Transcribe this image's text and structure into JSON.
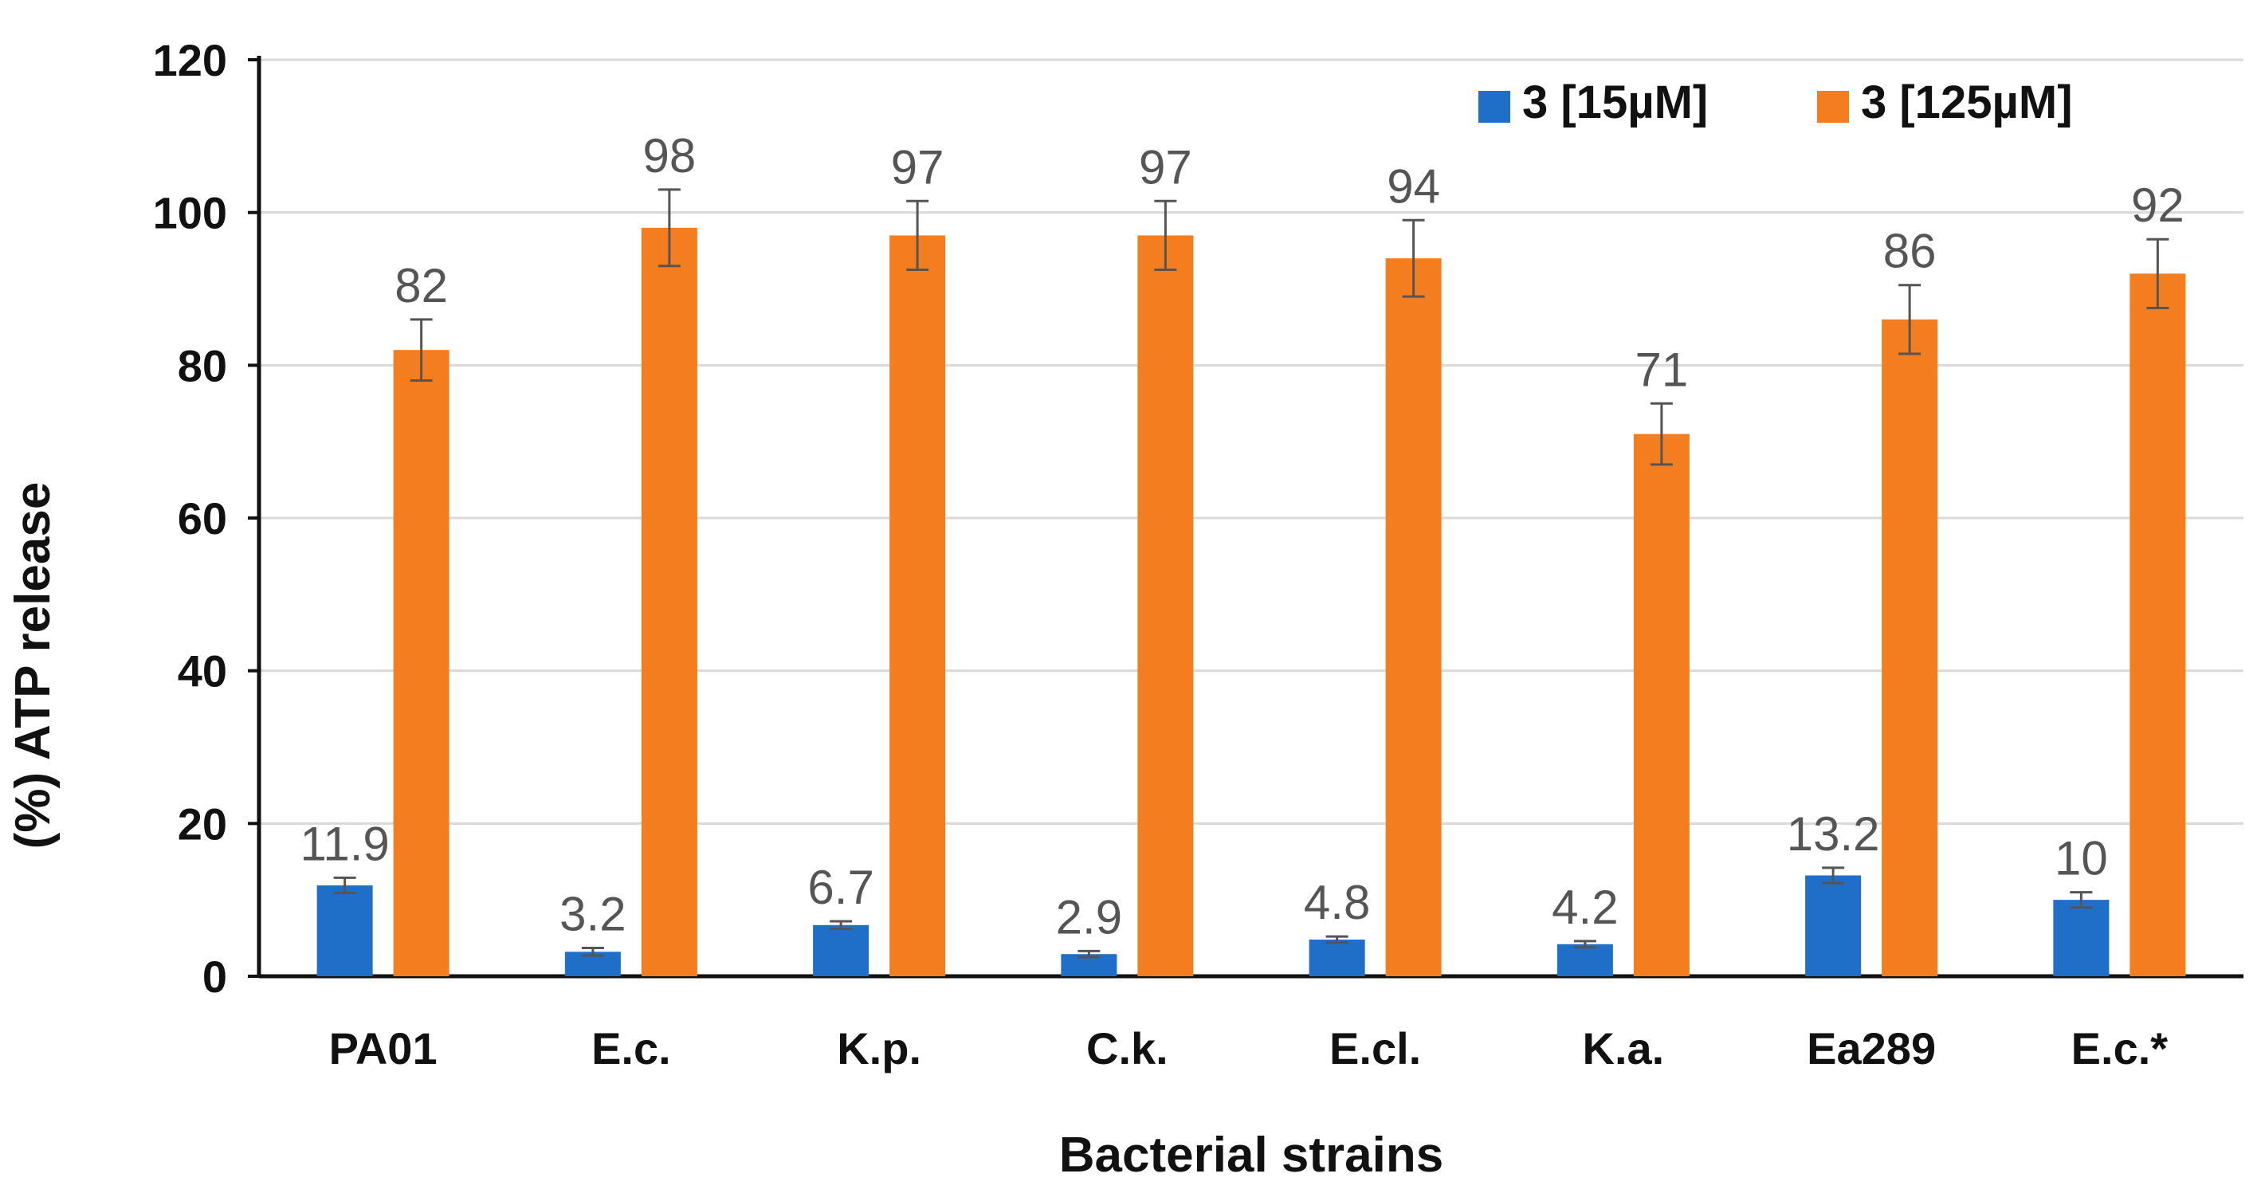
{
  "chart_data": {
    "type": "bar",
    "title": "",
    "xlabel": "Bacterial strains",
    "ylabel": "(%) ATP release",
    "ylim": [
      0,
      120
    ],
    "yticks": [
      0,
      20,
      40,
      60,
      80,
      100,
      120
    ],
    "grid": true,
    "legend_position": "top-right",
    "categories": [
      "PA01",
      "E.c.",
      "K.p.",
      "C.k.",
      "E.cl.",
      "K.a.",
      "Ea289",
      "E.c.*"
    ],
    "series": [
      {
        "name": "3 [15µM]",
        "color": "#1f6fc8",
        "values": [
          11.9,
          3.2,
          6.7,
          2.9,
          4.8,
          4.2,
          13.2,
          10
        ],
        "labels": [
          "11.9",
          "3.2",
          "6.7",
          "2.9",
          "4.8",
          "4.2",
          "13.2",
          "10"
        ],
        "errors": [
          1,
          0.5,
          0.5,
          0.4,
          0.4,
          0.4,
          1,
          1
        ]
      },
      {
        "name": "3 [125µM]",
        "color": "#f47d20",
        "values": [
          82,
          98,
          97,
          97,
          94,
          71,
          86,
          92
        ],
        "labels": [
          "82",
          "98",
          "97",
          "97",
          "94",
          "71",
          "86",
          "92"
        ],
        "errors": [
          4,
          5,
          4.5,
          4.5,
          5,
          4,
          4.5,
          4.5
        ]
      }
    ]
  }
}
